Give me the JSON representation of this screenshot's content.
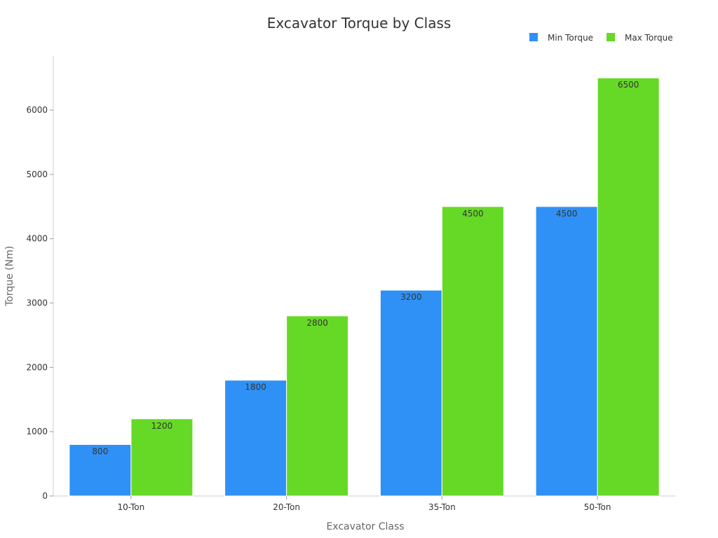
{
  "chart_data": {
    "type": "bar",
    "title": "Excavator Torque by Class",
    "xlabel": "Excavator Class",
    "ylabel": "Torque (Nm)",
    "categories": [
      "10-Ton",
      "20-Ton",
      "35-Ton",
      "50-Ton"
    ],
    "series": [
      {
        "name": "Min Torque",
        "color": "#2f91f5",
        "values": [
          800,
          1800,
          3200,
          4500
        ]
      },
      {
        "name": "Max Torque",
        "color": "#66d926",
        "values": [
          1200,
          2800,
          4500,
          6500
        ]
      }
    ],
    "ylim": [
      0,
      6840
    ],
    "yticks": [
      0,
      1000,
      2000,
      3000,
      4000,
      5000,
      6000
    ],
    "grid": false,
    "legend_position": "top-right",
    "data_labels": true
  }
}
